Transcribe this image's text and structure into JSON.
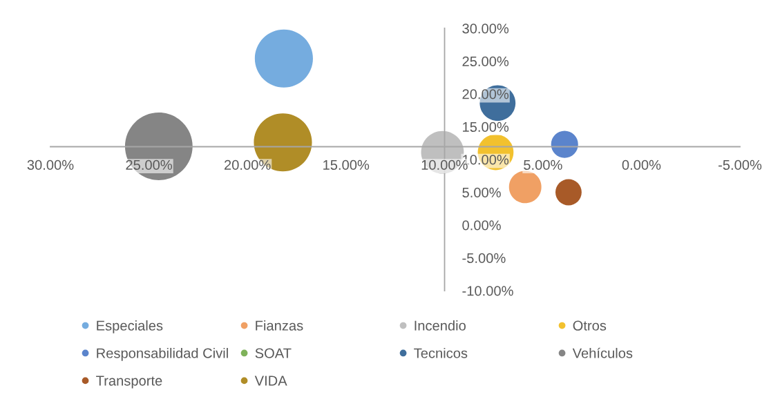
{
  "chart_data": {
    "type": "bubble",
    "marker": "circle",
    "legend": "bottom",
    "xlim": [
      30,
      -5
    ],
    "xticks": [
      {
        "value": 30,
        "label": "30.00%"
      },
      {
        "value": 25,
        "label": "25.00%"
      },
      {
        "value": 20,
        "label": "20.00%"
      },
      {
        "value": 15,
        "label": "15.00%"
      },
      {
        "value": 10,
        "label": "10.00%"
      },
      {
        "value": 5,
        "label": "5.00%"
      },
      {
        "value": 0,
        "label": "0.00%"
      },
      {
        "value": -5,
        "label": "-5.00%"
      }
    ],
    "ylim": [
      -10,
      30
    ],
    "yticks": [
      {
        "value": -10,
        "label": "-10.00%"
      },
      {
        "value": -5,
        "label": "-5.00%"
      },
      {
        "value": 0,
        "label": "0.00%"
      },
      {
        "value": 5,
        "label": "5.00%"
      },
      {
        "value": 10,
        "label": "10.00%"
      },
      {
        "value": 15,
        "label": "15.00%"
      },
      {
        "value": 20,
        "label": "20.00%"
      },
      {
        "value": 25,
        "label": "25.00%"
      },
      {
        "value": 30,
        "label": "30.00%"
      }
    ],
    "series": [
      {
        "name": "Especiales",
        "color": "#75acdf",
        "x": [
          18.15
        ],
        "values": [
          25.4
        ],
        "sizes": [
          0.74
        ]
      },
      {
        "name": "Fianzas",
        "color": "#f0a064",
        "x": [
          5.9
        ],
        "values": [
          5.8
        ],
        "sizes": [
          0.23
        ]
      },
      {
        "name": "Incendio",
        "color": "#bfbfbf",
        "x": [
          10.1
        ],
        "values": [
          11.1
        ],
        "sizes": [
          0.4
        ]
      },
      {
        "name": "Otros",
        "color": "#f2c12e",
        "x": [
          7.4
        ],
        "values": [
          11.1
        ],
        "sizes": [
          0.28
        ]
      },
      {
        "name": "Responsabilidad Civil",
        "color": "#5b84cc",
        "x": [
          3.9
        ],
        "values": [
          12.3
        ],
        "sizes": [
          0.16
        ]
      },
      {
        "name": "SOAT",
        "color": "#7fb25a",
        "x": [
          null
        ],
        "values": [
          null
        ],
        "sizes": [
          null
        ]
      },
      {
        "name": "Tecnicos",
        "color": "#3f6e9c",
        "x": [
          7.3
        ],
        "values": [
          18.6
        ],
        "sizes": [
          0.28
        ]
      },
      {
        "name": "Vehículos",
        "color": "#858585",
        "x": [
          24.5
        ],
        "values": [
          12.0
        ],
        "sizes": [
          1
        ]
      },
      {
        "name": "Transporte",
        "color": "#a85a28",
        "x": [
          3.7
        ],
        "values": [
          5.0
        ],
        "sizes": [
          0.15
        ]
      },
      {
        "name": "VIDA",
        "color": "#b08d27",
        "x": [
          18.2
        ],
        "values": [
          12.6
        ],
        "sizes": [
          0.74
        ]
      }
    ]
  }
}
